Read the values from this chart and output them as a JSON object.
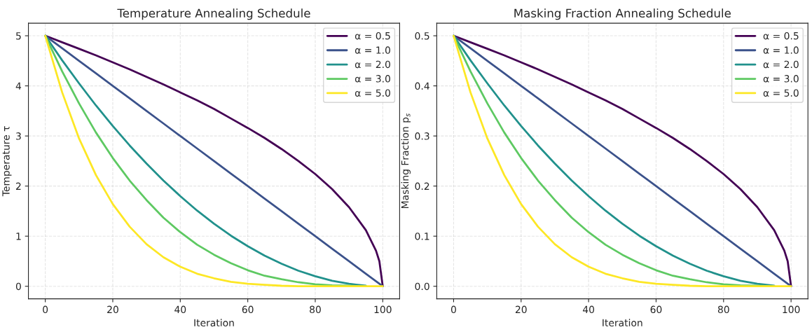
{
  "chart_data": [
    {
      "type": "line",
      "title": "Temperature Annealing Schedule",
      "xlabel": "Iteration",
      "ylabel": "Temperature τ",
      "x": [
        0,
        5,
        10,
        15,
        20,
        25,
        30,
        35,
        40,
        45,
        50,
        55,
        60,
        65,
        70,
        75,
        80,
        85,
        90,
        95,
        100
      ],
      "xlim": [
        -5,
        105
      ],
      "xticks": [
        0,
        20,
        40,
        60,
        80,
        100
      ],
      "ylim": [
        -0.25,
        5.25
      ],
      "yticks": [
        0,
        1,
        2,
        3,
        4,
        5
      ],
      "grid": true,
      "legend": "top right",
      "line_style": "solid",
      "marker": "none",
      "series": [
        {
          "name": "α = 0.5",
          "color": "#440154",
          "x": [
            0,
            5,
            10,
            15,
            20,
            25,
            30,
            35,
            40,
            45,
            50,
            55,
            60,
            65,
            70,
            75,
            80,
            85,
            90,
            95,
            98,
            99,
            100
          ],
          "values": [
            5,
            4.87,
            4.74,
            4.61,
            4.47,
            4.33,
            4.18,
            4.03,
            3.87,
            3.71,
            3.54,
            3.35,
            3.16,
            2.96,
            2.74,
            2.5,
            2.24,
            1.94,
            1.58,
            1.12,
            0.71,
            0.5,
            0
          ]
        },
        {
          "name": "α = 1.0",
          "color": "#3b528b",
          "values": [
            5,
            4.75,
            4.5,
            4.25,
            4,
            3.75,
            3.5,
            3.25,
            3,
            2.75,
            2.5,
            2.25,
            2,
            1.75,
            1.5,
            1.25,
            1,
            0.75,
            0.5,
            0.25,
            0
          ]
        },
        {
          "name": "α = 2.0",
          "color": "#21918c",
          "values": [
            5,
            4.51,
            4.05,
            3.61,
            3.2,
            2.81,
            2.45,
            2.11,
            1.8,
            1.51,
            1.25,
            1.01,
            0.8,
            0.61,
            0.45,
            0.31,
            0.2,
            0.11,
            0.05,
            0.01,
            null
          ]
        },
        {
          "name": "α = 3.0",
          "color": "#5ec962",
          "values": [
            5,
            4.29,
            3.65,
            3.07,
            2.56,
            2.11,
            1.72,
            1.37,
            1.08,
            0.83,
            0.63,
            0.46,
            0.32,
            0.21,
            0.14,
            0.08,
            0.04,
            0.02,
            0.01,
            0,
            null
          ]
        },
        {
          "name": "α = 5.0",
          "color": "#fde725",
          "values": [
            5,
            3.87,
            2.95,
            2.22,
            1.64,
            1.19,
            0.84,
            0.58,
            0.39,
            0.25,
            0.16,
            0.09,
            0.05,
            0.03,
            0.01,
            0,
            0,
            0,
            0,
            0,
            0
          ]
        }
      ]
    },
    {
      "type": "line",
      "title": "Masking Fraction Annealing Schedule",
      "xlabel": "Iteration",
      "ylabel": "Masking Fraction p$_{s}$",
      "x": [
        0,
        5,
        10,
        15,
        20,
        25,
        30,
        35,
        40,
        45,
        50,
        55,
        60,
        65,
        70,
        75,
        80,
        85,
        90,
        95,
        100
      ],
      "xlim": [
        -5,
        105
      ],
      "xticks": [
        0,
        20,
        40,
        60,
        80,
        100
      ],
      "ylim": [
        -0.025,
        0.525
      ],
      "yticks": [
        {
          "value": 0,
          "label": "0.0"
        },
        0.1,
        0.2,
        0.3,
        0.4,
        0.5
      ],
      "grid": true,
      "legend": "top right",
      "line_style": "solid",
      "marker": "none",
      "series": [
        {
          "name": "α = 0.5",
          "color": "#440154",
          "x": [
            0,
            5,
            10,
            15,
            20,
            25,
            30,
            35,
            40,
            45,
            50,
            55,
            60,
            65,
            70,
            75,
            80,
            85,
            90,
            95,
            98,
            99,
            100
          ],
          "values": [
            0.5,
            0.487,
            0.474,
            0.461,
            0.447,
            0.433,
            0.418,
            0.403,
            0.387,
            0.371,
            0.354,
            0.335,
            0.316,
            0.296,
            0.274,
            0.25,
            0.224,
            0.194,
            0.158,
            0.112,
            0.071,
            0.05,
            0
          ]
        },
        {
          "name": "α = 1.0",
          "color": "#3b528b",
          "values": [
            0.5,
            0.475,
            0.45,
            0.425,
            0.4,
            0.375,
            0.35,
            0.325,
            0.3,
            0.275,
            0.25,
            0.225,
            0.2,
            0.175,
            0.15,
            0.125,
            0.1,
            0.075,
            0.05,
            0.025,
            0
          ]
        },
        {
          "name": "α = 2.0",
          "color": "#21918c",
          "values": [
            0.5,
            0.451,
            0.405,
            0.361,
            0.32,
            0.281,
            0.245,
            0.211,
            0.18,
            0.151,
            0.125,
            0.101,
            0.08,
            0.061,
            0.045,
            0.031,
            0.02,
            0.011,
            0.005,
            0.001,
            null
          ]
        },
        {
          "name": "α = 3.0",
          "color": "#5ec962",
          "values": [
            0.5,
            0.429,
            0.365,
            0.307,
            0.256,
            0.211,
            0.172,
            0.137,
            0.108,
            0.083,
            0.063,
            0.046,
            0.032,
            0.021,
            0.014,
            0.008,
            0.004,
            0.002,
            0.001,
            0,
            null
          ]
        },
        {
          "name": "α = 5.0",
          "color": "#fde725",
          "values": [
            0.5,
            0.387,
            0.295,
            0.222,
            0.164,
            0.119,
            0.084,
            0.058,
            0.039,
            0.025,
            0.016,
            0.009,
            0.005,
            0.003,
            0.001,
            0,
            0,
            0,
            0,
            0,
            0
          ]
        }
      ]
    }
  ]
}
